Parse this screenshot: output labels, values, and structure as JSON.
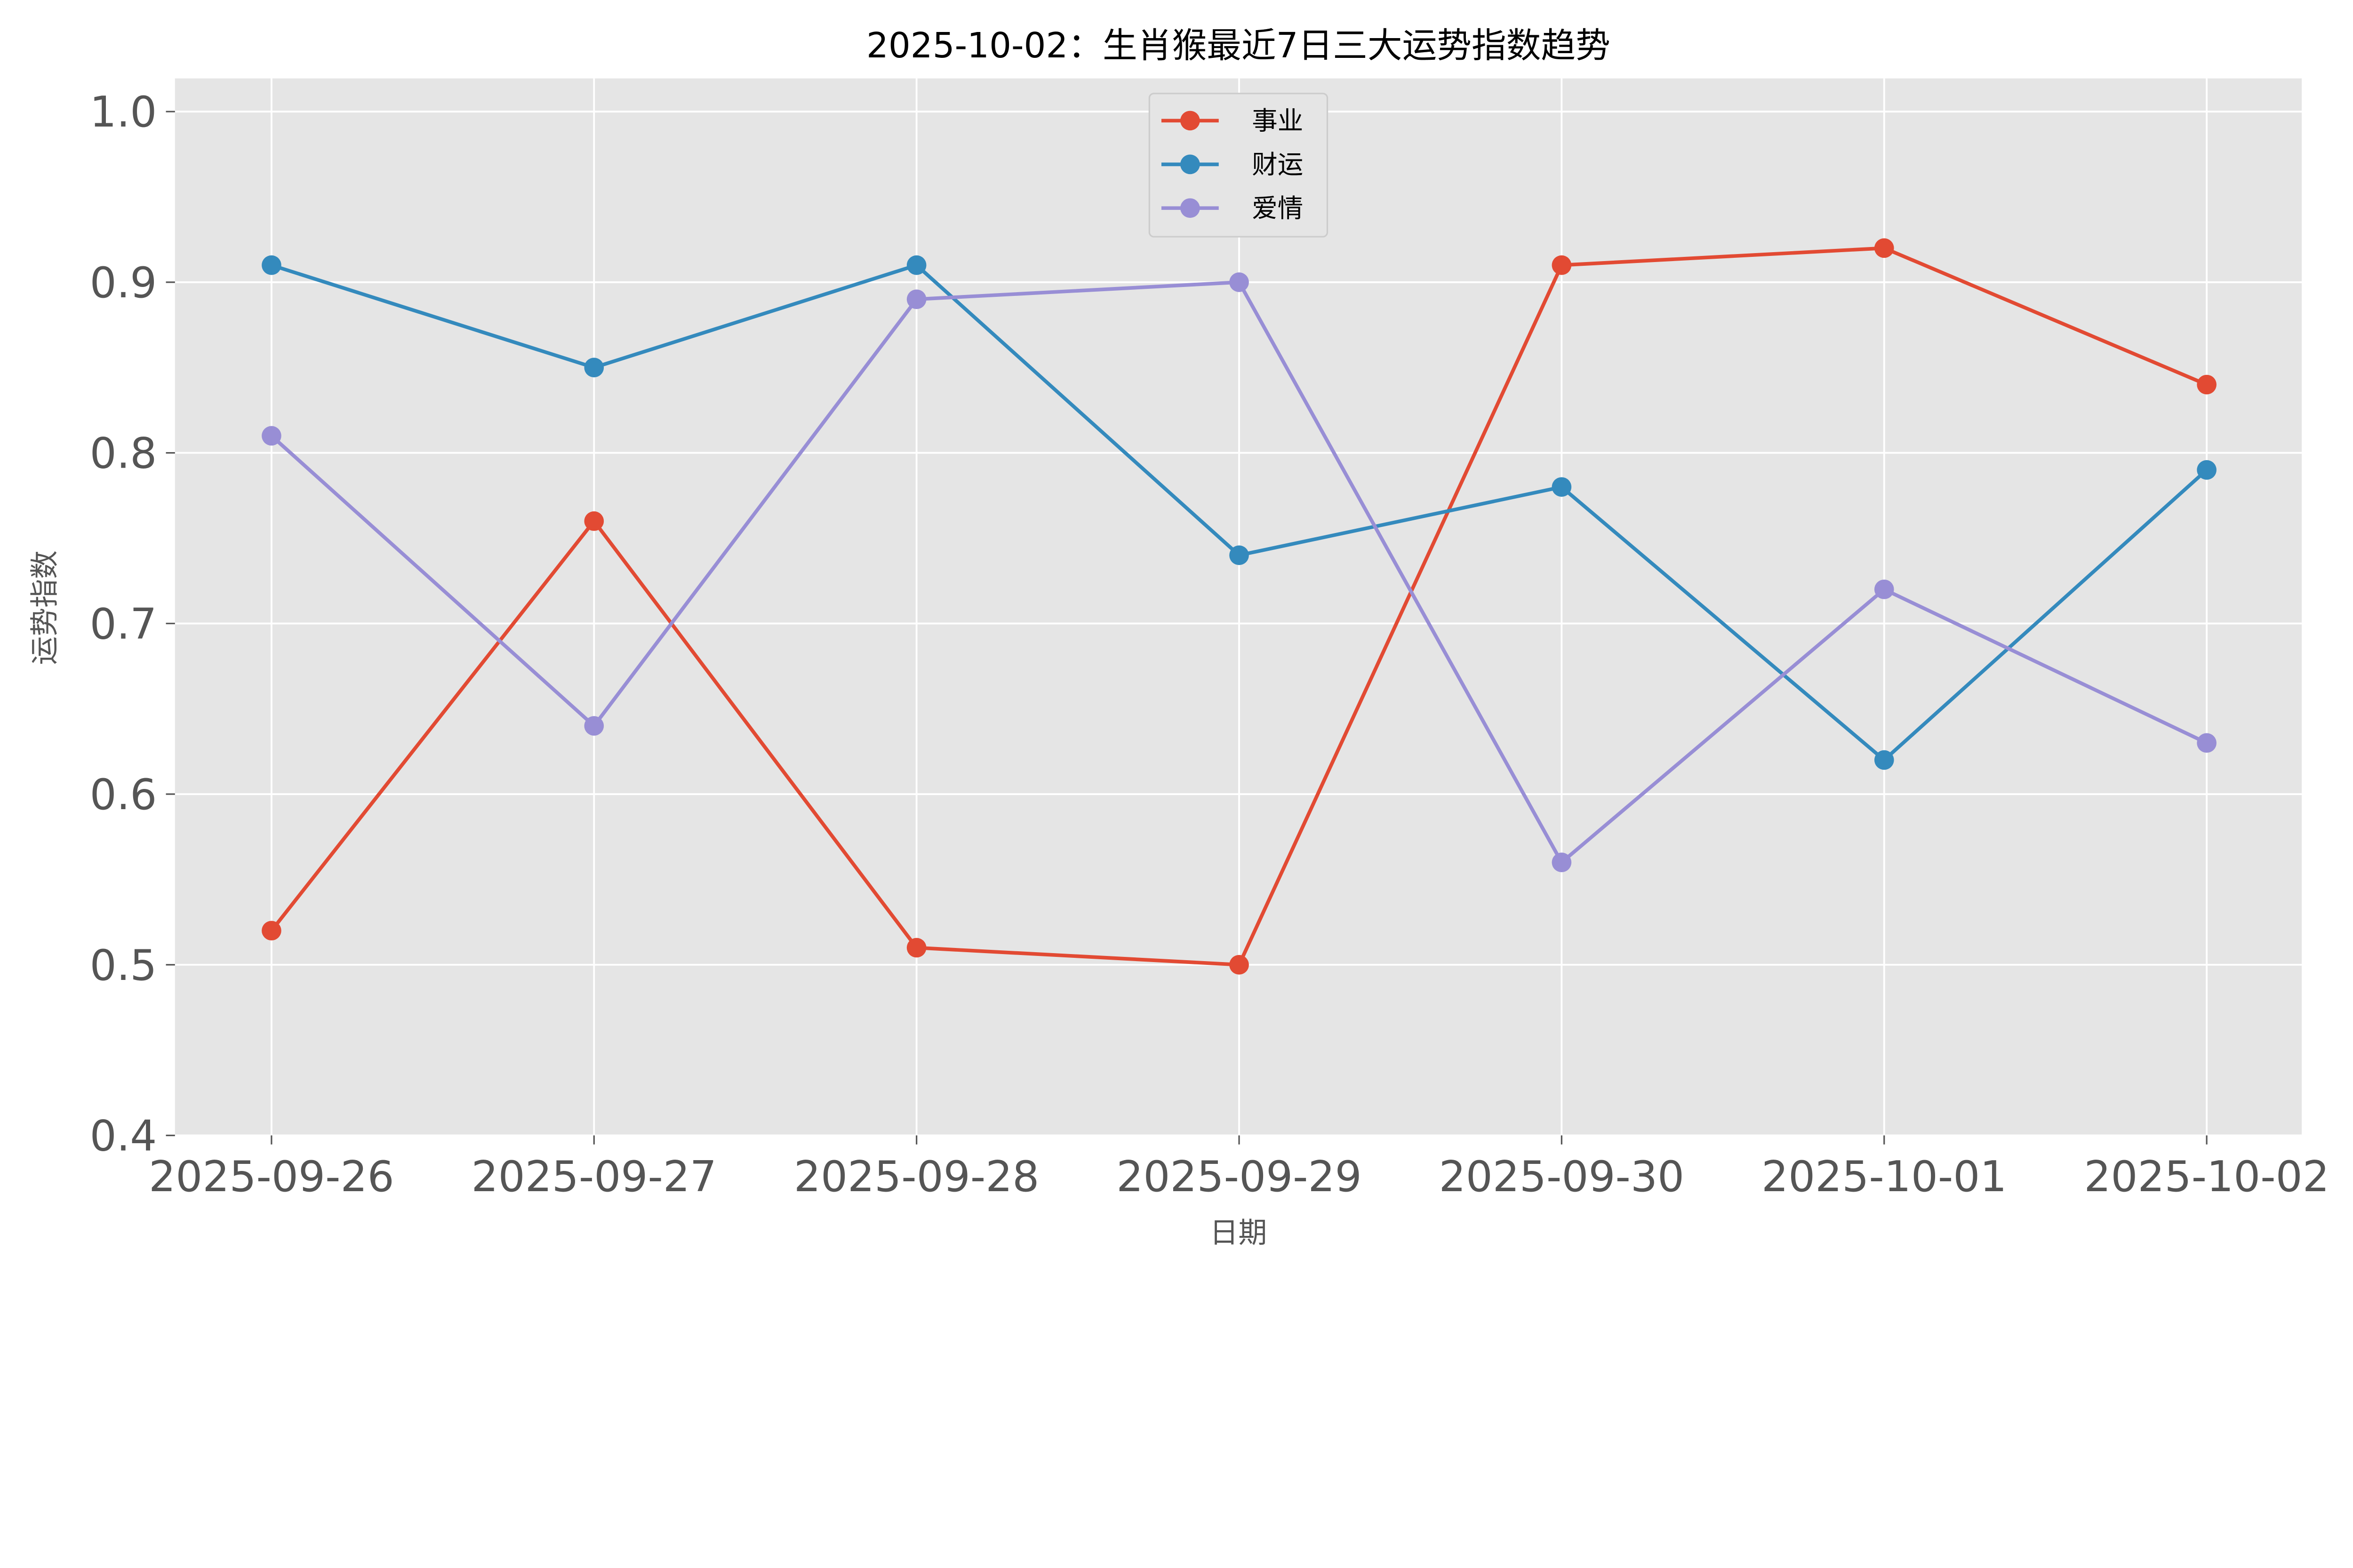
{
  "chart_data": {
    "type": "line",
    "title": "2025-10-02：生肖猴最近7日三大运势指数趋势",
    "xlabel": "日期",
    "ylabel": "运势指数",
    "categories": [
      "2025-09-26",
      "2025-09-27",
      "2025-09-28",
      "2025-09-29",
      "2025-09-30",
      "2025-10-01",
      "2025-10-02"
    ],
    "yticks": [
      "0.4",
      "0.5",
      "0.6",
      "0.7",
      "0.8",
      "0.9",
      "1.0"
    ],
    "ylim": [
      0.4,
      1.02
    ],
    "grid": true,
    "legend_position": "top-center",
    "background": "#E5E5E5",
    "series": [
      {
        "name": "事业",
        "color": "#E24A33",
        "values": [
          0.52,
          0.76,
          0.51,
          0.5,
          0.91,
          0.92,
          0.84
        ]
      },
      {
        "name": "财运",
        "color": "#348ABD",
        "values": [
          0.91,
          0.85,
          0.91,
          0.74,
          0.78,
          0.62,
          0.79
        ]
      },
      {
        "name": "爱情",
        "color": "#988ED5",
        "values": [
          0.81,
          0.64,
          0.89,
          0.9,
          0.56,
          0.72,
          0.63
        ]
      }
    ]
  }
}
